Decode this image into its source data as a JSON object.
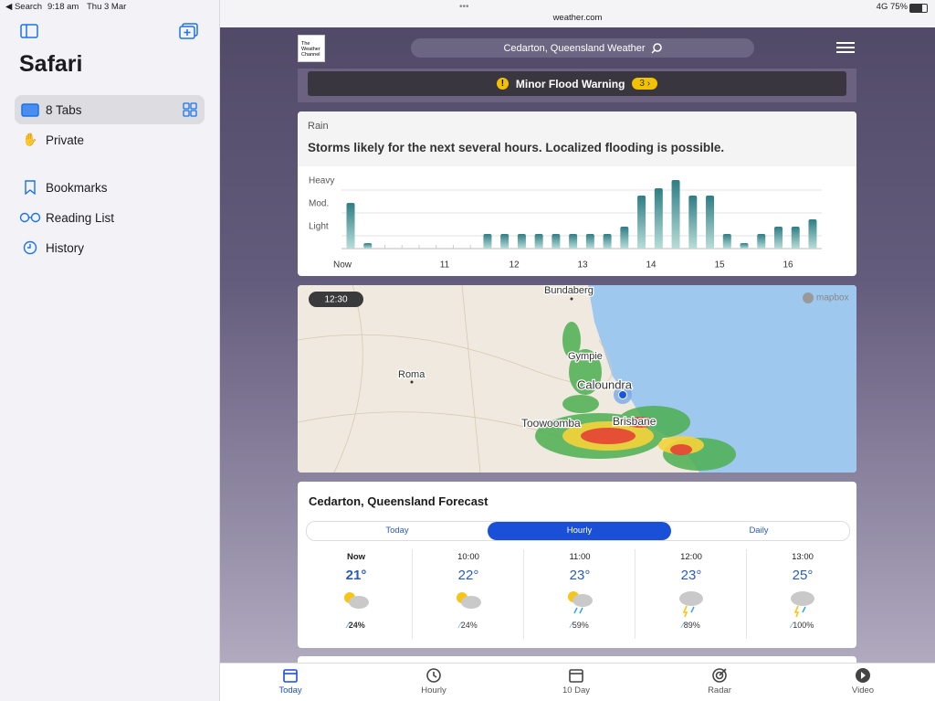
{
  "status_bar": {
    "back": "◀ Search",
    "time": "9:18 am",
    "date": "Thu 3 Mar",
    "network": "4G",
    "battery": "75%"
  },
  "sidebar": {
    "title": "Safari",
    "items": [
      "8 Tabs",
      "Private",
      "Bookmarks",
      "Reading List",
      "History"
    ]
  },
  "browser": {
    "url": "weather.com"
  },
  "header": {
    "logo": [
      "The",
      "Weather",
      "Channel"
    ],
    "search": "Cedarton, Queensland Weather"
  },
  "alert": {
    "text": "Minor Flood Warning",
    "count": "3"
  },
  "rain": {
    "label": "Rain",
    "headline": "Storms likely for the next several hours. Localized flooding is possible.",
    "chart": {
      "type": "bar",
      "color": "#2e7d85",
      "x_labels": [
        "Now",
        "11",
        "12",
        "13",
        "14",
        "15",
        "16"
      ],
      "values": [
        50,
        6,
        0,
        0,
        0,
        0,
        0,
        0,
        16,
        16,
        16,
        16,
        16,
        16,
        16,
        16,
        24,
        58,
        66,
        75,
        58,
        58,
        16,
        6,
        16,
        24,
        24,
        32
      ],
      "ylim": [
        0,
        80
      ],
      "yticks": [
        {
          "value": 14,
          "label": "Light"
        },
        {
          "value": 39,
          "label": "Mod."
        },
        {
          "value": 64,
          "label": "Heavy"
        }
      ],
      "grid": true
    }
  },
  "map": {
    "time": "12:30",
    "attribution": "mapbox",
    "places": [
      "Bundaberg",
      "Gympie",
      "Roma",
      "Caloundra",
      "Toowoomba",
      "Brisbane"
    ]
  },
  "forecast": {
    "title": "Cedarton, Queensland Forecast",
    "tabs": [
      "Today",
      "Hourly",
      "Daily"
    ],
    "hours": [
      {
        "time": "Now",
        "temp": "21°",
        "precip": "24%"
      },
      {
        "time": "10:00",
        "temp": "22°",
        "precip": "24%"
      },
      {
        "time": "11:00",
        "temp": "23°",
        "precip": "59%"
      },
      {
        "time": "12:00",
        "temp": "23°",
        "precip": "89%"
      },
      {
        "time": "13:00",
        "temp": "25°",
        "precip": "100%"
      }
    ]
  },
  "tab_bar": [
    "Today",
    "Hourly",
    "10 Day",
    "Radar",
    "Video"
  ]
}
